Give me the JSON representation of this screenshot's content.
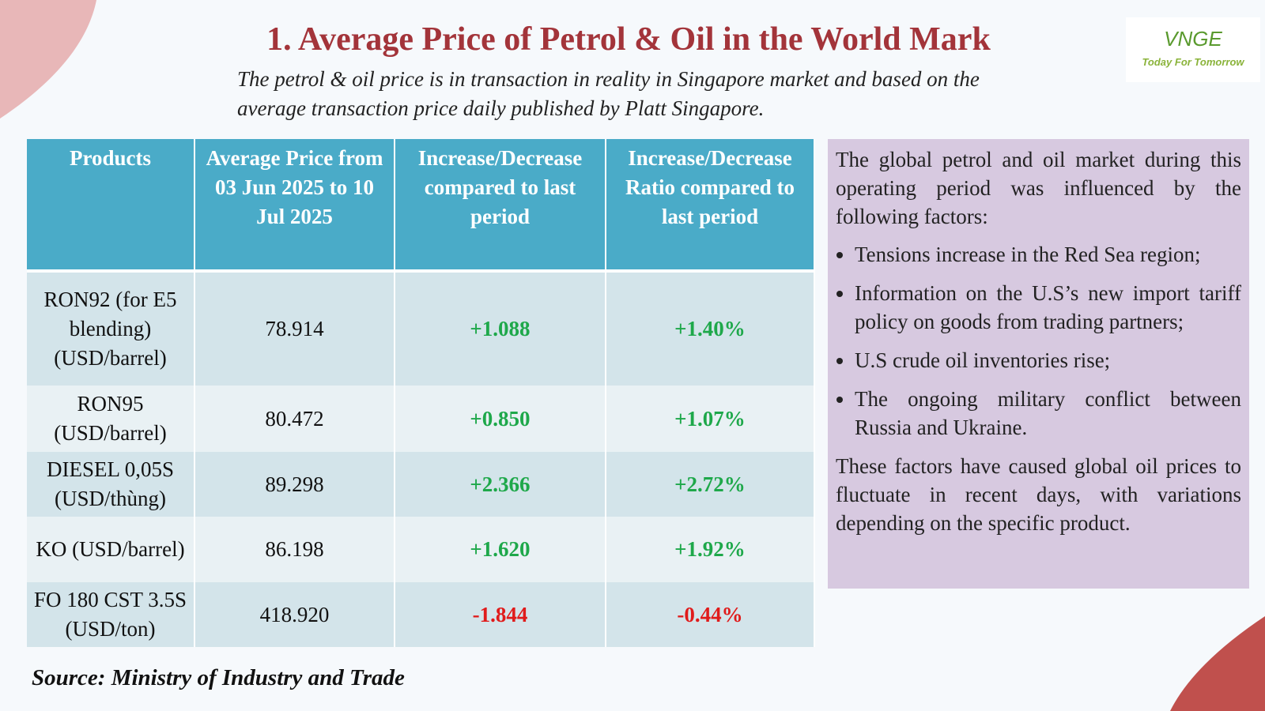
{
  "header": {
    "title": "1. Average Price of Petrol & Oil in the World Mark",
    "subtitle": "The petrol & oil price is in transaction in reality in Singapore market and based on the average transaction price daily published by Platt Singapore."
  },
  "logo": {
    "name": "VNGE",
    "tagline": "Today For Tomorrow"
  },
  "table": {
    "columns": [
      "Products",
      "Average Price from 03 Jun 2025 to 10 Jul 2025",
      "Increase/Decrease compared to last period",
      "Increase/Decrease Ratio compared to last period"
    ],
    "rows": [
      [
        "RON92 (for E5 blending) (USD/barrel)",
        "78.914",
        "+1.088",
        "+1.40%"
      ],
      [
        "RON95 (USD/barrel)",
        "80.472",
        "+0.850",
        "+1.07%"
      ],
      [
        "DIESEL 0,05S (USD/thùng)",
        "89.298",
        "+2.366",
        "+2.72%"
      ],
      [
        "KO (USD/barrel)",
        "86.198",
        "+1.620",
        "+1.92%"
      ],
      [
        "FO 180 CST 3.5S (USD/ton)",
        "418.920",
        "-1.844",
        "-0.44%"
      ]
    ]
  },
  "panel": {
    "intro": "The global petrol and oil market during this operating period was influenced by the following factors:",
    "bullets": [
      "Tensions increase in the Red Sea region;",
      "Information on the U.S’s new import tariff policy on goods from trading partners;",
      "U.S crude oil inventories rise;",
      "The ongoing military conflict between Russia and Ukraine."
    ],
    "conclusion": "These factors have caused global oil prices to fluctuate in recent days, with variations depending on the specific product."
  },
  "source": "Source: Ministry of Industry and Trade"
}
